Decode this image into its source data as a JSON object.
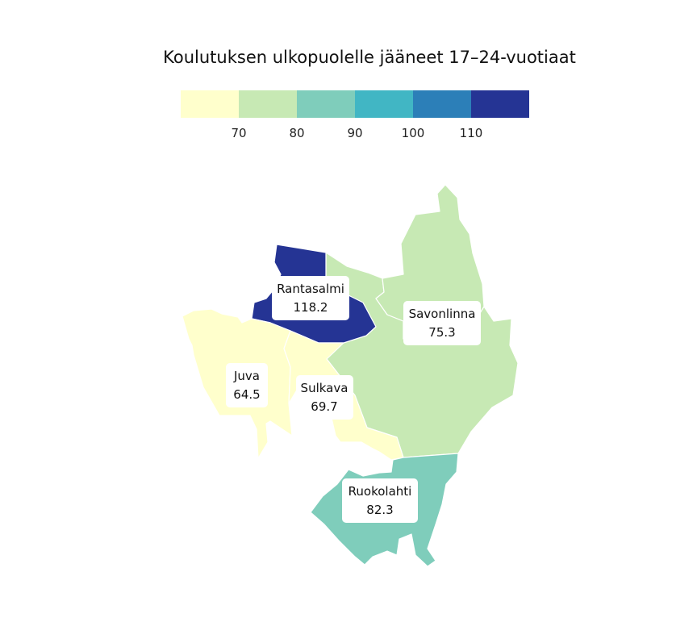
{
  "map": {
    "title": "Koulutuksen ulkopuolelle jääneet 17–24-vuotiaat",
    "legend": {
      "type": "stepped color scale",
      "tick_labels": [
        "70",
        "80",
        "90",
        "100",
        "110"
      ],
      "bins": [
        {
          "range": "<70",
          "color": "#ffffcc"
        },
        {
          "range": "70–80",
          "color": "#c7e9b4"
        },
        {
          "range": "80–90",
          "color": "#7fcdbb"
        },
        {
          "range": "90–100",
          "color": "#41b6c4"
        },
        {
          "range": "100–110",
          "color": "#2c7fb8"
        },
        {
          "range": ">110",
          "color": "#253494"
        }
      ]
    },
    "regions": [
      {
        "name": "Rantasalmi",
        "value": "118.2",
        "color": "#253494"
      },
      {
        "name": "Savonlinna",
        "value": "75.3",
        "color": "#c7e9b4"
      },
      {
        "name": "Juva",
        "value": "64.5",
        "color": "#ffffcc"
      },
      {
        "name": "Sulkava",
        "value": "69.7",
        "color": "#ffffcc"
      },
      {
        "name": "Ruokolahti",
        "value": "82.3",
        "color": "#7fcdbb"
      }
    ]
  }
}
